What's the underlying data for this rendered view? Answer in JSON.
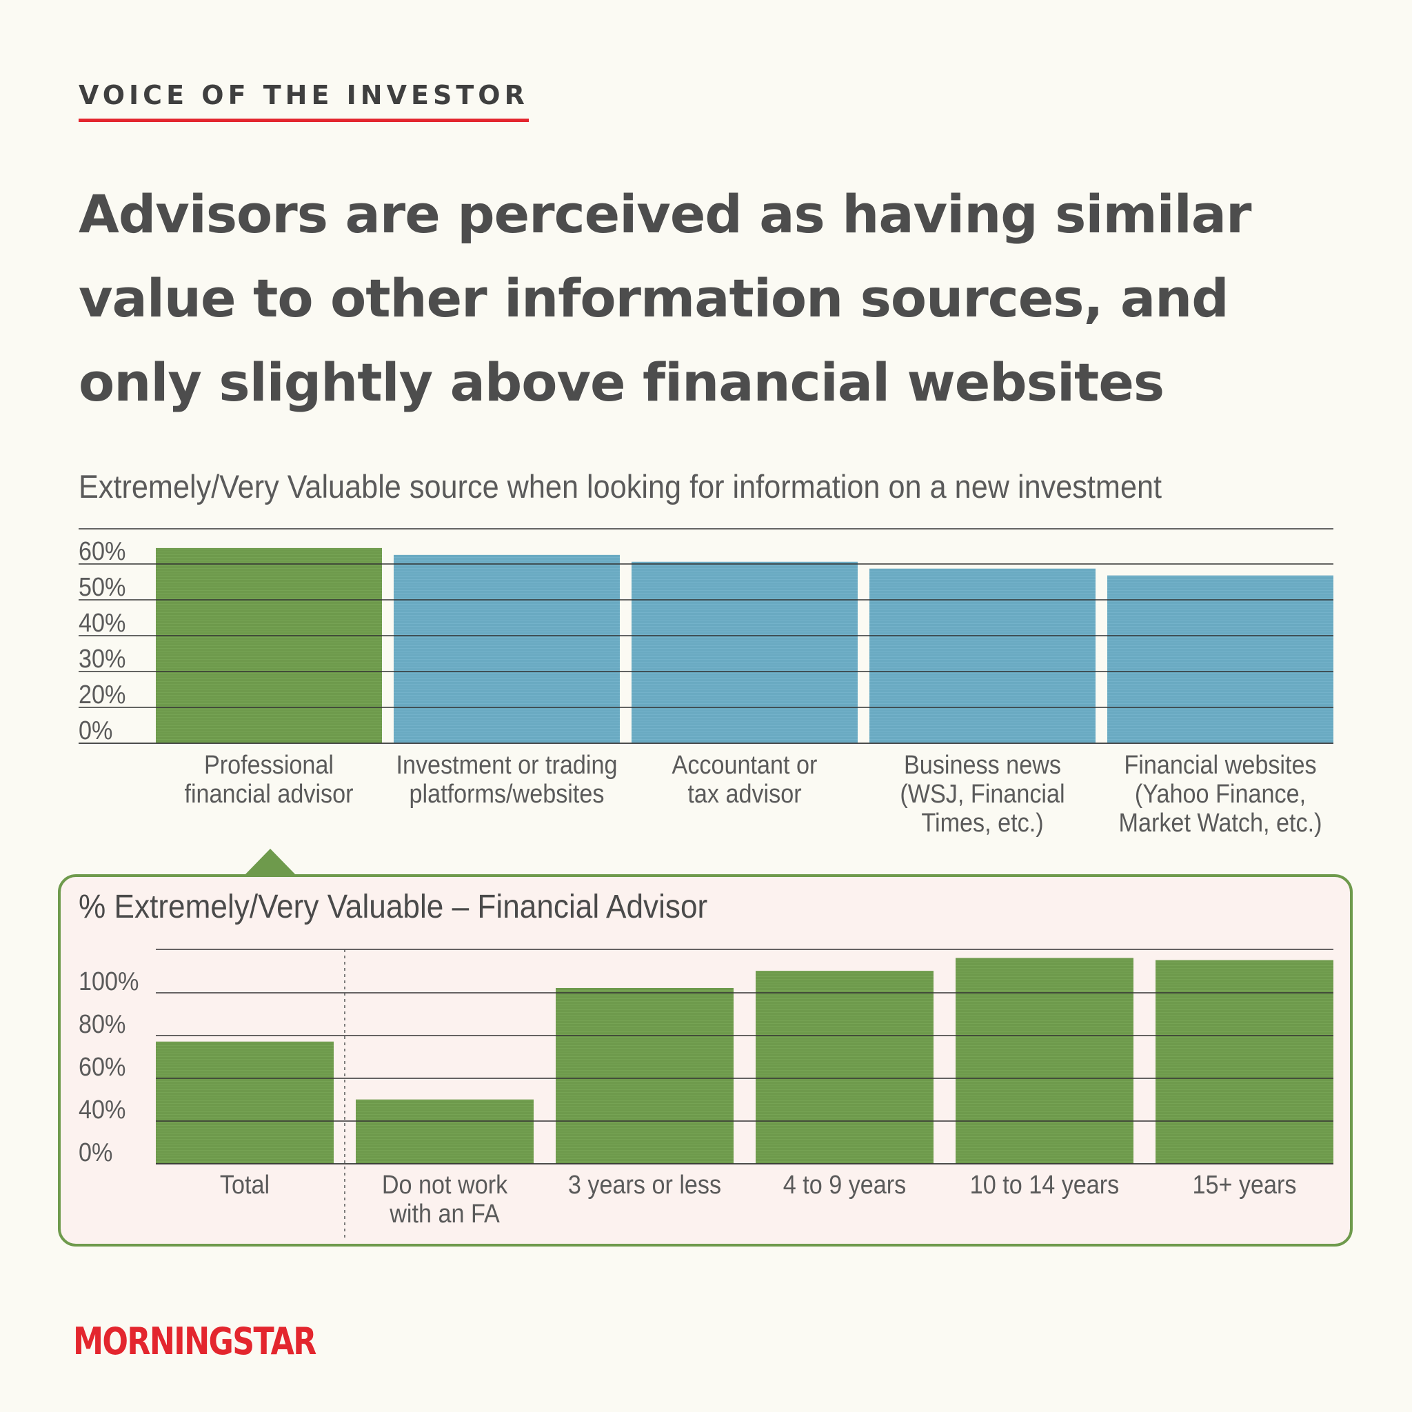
{
  "header": {
    "kicker": "VOICE OF THE INVESTOR",
    "headline": "Advisors are perceived as having similar value to other information sources, and only slightly above financial websites"
  },
  "brand": {
    "logo_text": "MORNINGSTAR",
    "accent_color": "#e3262e"
  },
  "colors": {
    "green": "#6e9a4c",
    "blue": "#6aaac2"
  },
  "chart_data": [
    {
      "type": "bar",
      "title": "Extremely/Very Valuable source when looking for information on a new investment",
      "categories": [
        [
          "Professional",
          "financial advisor"
        ],
        [
          "Investment or trading",
          "platforms/websites"
        ],
        [
          "Accountant or",
          "tax advisor"
        ],
        [
          "Business news",
          "(WSJ, Financial",
          "Times, etc.)"
        ],
        [
          "Financial websites",
          "(Yahoo Finance,",
          "Market Watch, etc.)"
        ]
      ],
      "values": [
        57,
        55,
        53,
        51,
        49
      ],
      "colors": [
        "#6e9a4c",
        "#6aaac2",
        "#6aaac2",
        "#6aaac2",
        "#6aaac2"
      ],
      "yticks": [
        "0%",
        "20%",
        "30%",
        "40%",
        "50%",
        "60%"
      ],
      "ylim": [
        0,
        60
      ],
      "grid": true
    },
    {
      "type": "bar",
      "title": "% Extremely/Very Valuable – Financial Advisor",
      "categories": [
        [
          "Total"
        ],
        [
          "Do not work",
          "with an FA"
        ],
        [
          "3 years or less"
        ],
        [
          "4 to 9 years"
        ],
        [
          "10 to 14 years"
        ],
        [
          "15+ years"
        ]
      ],
      "values": [
        57,
        30,
        82,
        90,
        96,
        95
      ],
      "colors": [
        "#6e9a4c",
        "#6e9a4c",
        "#6e9a4c",
        "#6e9a4c",
        "#6e9a4c",
        "#6e9a4c"
      ],
      "yticks": [
        "0%",
        "40%",
        "60%",
        "80%",
        "100%"
      ],
      "ylim": [
        0,
        100
      ],
      "grid": true,
      "divider_after": 0
    }
  ]
}
